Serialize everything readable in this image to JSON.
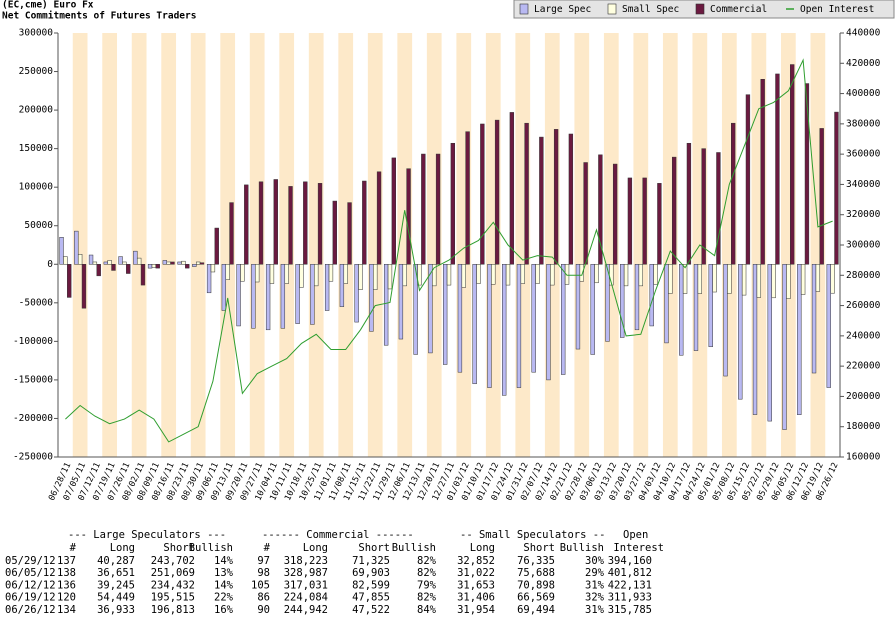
{
  "chart_data": {
    "type": "bar",
    "title": "(EC,cme) Euro Fx",
    "subtitle": "Net Commitments of Futures Traders",
    "categories": [
      "06/28/11",
      "07/05/11",
      "07/12/11",
      "07/19/11",
      "07/26/11",
      "08/02/11",
      "08/09/11",
      "08/16/11",
      "08/23/11",
      "08/30/11",
      "09/06/11",
      "09/13/11",
      "09/20/11",
      "09/27/11",
      "10/04/11",
      "10/11/11",
      "10/18/11",
      "10/25/11",
      "11/01/11",
      "11/08/11",
      "11/15/11",
      "11/22/11",
      "11/29/11",
      "12/06/11",
      "12/13/11",
      "12/20/11",
      "12/27/11",
      "01/03/12",
      "01/10/12",
      "01/17/12",
      "01/24/12",
      "01/31/12",
      "02/07/12",
      "02/14/12",
      "02/21/12",
      "02/28/12",
      "03/06/12",
      "03/13/12",
      "03/20/12",
      "03/27/12",
      "04/03/12",
      "04/10/12",
      "04/17/12",
      "04/24/12",
      "05/01/12",
      "05/08/12",
      "05/15/12",
      "05/22/12",
      "05/29/12",
      "06/05/12",
      "06/12/12",
      "06/19/12",
      "06/26/12"
    ],
    "series": [
      {
        "name": "Large Spec",
        "color": "#b9b9f2",
        "values": [
          35000,
          43000,
          12000,
          3000,
          10000,
          17000,
          -5000,
          5000,
          3000,
          -3000,
          -37000,
          -60000,
          -80000,
          -83000,
          -85000,
          -83000,
          -77000,
          -78000,
          -60000,
          -55000,
          -75000,
          -87000,
          -105000,
          -97000,
          -117000,
          -115000,
          -130000,
          -140000,
          -155000,
          -160000,
          -170000,
          -160000,
          -140000,
          -150000,
          -143000,
          -110000,
          -117000,
          -100000,
          -95000,
          -85000,
          -80000,
          -102000,
          -118000,
          -112000,
          -107000,
          -145000,
          -175000,
          -195000,
          -203415,
          -214418,
          -195187,
          -141066,
          -159880
        ]
      },
      {
        "name": "Small Spec",
        "color": "#ffffe0",
        "values": [
          10000,
          13000,
          3000,
          5000,
          3000,
          8000,
          -4000,
          3000,
          4000,
          3000,
          -10000,
          -20000,
          -22000,
          -23000,
          -25000,
          -25000,
          -30000,
          -28000,
          -22000,
          -25000,
          -33000,
          -33000,
          -32000,
          -28000,
          -27000,
          -28000,
          -27000,
          -30000,
          -25000,
          -26000,
          -27000,
          -25000,
          -25000,
          -27000,
          -26000,
          -22000,
          -24000,
          -27000,
          -28000,
          -28000,
          -26000,
          -38000,
          -38000,
          -38000,
          -36000,
          -38000,
          -40000,
          -43000,
          -43483,
          -44666,
          -39245,
          -35163,
          -37540
        ]
      },
      {
        "name": "Commercial",
        "color": "#6b1a40",
        "values": [
          -43000,
          -57000,
          -15000,
          -8000,
          -12000,
          -27000,
          -5000,
          3000,
          -5000,
          2000,
          47000,
          80000,
          103000,
          107000,
          110000,
          101000,
          107000,
          105000,
          82000,
          80000,
          108000,
          120000,
          138000,
          124000,
          143000,
          143000,
          157000,
          172000,
          182000,
          187000,
          197000,
          183000,
          165000,
          175000,
          169000,
          132000,
          142000,
          130000,
          112000,
          112000,
          105000,
          139000,
          157000,
          150000,
          145000,
          183000,
          220000,
          240000,
          246898,
          259084,
          234432,
          176229,
          197420
        ]
      },
      {
        "name": "Open Interest",
        "color": "#2f9e2f",
        "type": "line",
        "axis": "y2",
        "values": [
          185000,
          194000,
          187000,
          182000,
          185000,
          191000,
          185000,
          170000,
          175000,
          180000,
          210000,
          265000,
          202000,
          215000,
          220000,
          225000,
          235000,
          241000,
          231000,
          231000,
          244000,
          260000,
          262000,
          323000,
          270000,
          285000,
          290000,
          298000,
          303000,
          315000,
          300000,
          290000,
          293000,
          292000,
          280000,
          280000,
          310000,
          275000,
          240000,
          241000,
          270000,
          296000,
          285000,
          300000,
          293000,
          340000,
          365000,
          390000,
          394160,
          401812,
          422131,
          311933,
          315785
        ]
      }
    ],
    "ylim": [
      -250000,
      300000
    ],
    "yticks": [
      -250000,
      -200000,
      -150000,
      -100000,
      -50000,
      0,
      50000,
      100000,
      150000,
      200000,
      250000,
      300000
    ],
    "y2lim": [
      160000,
      440000
    ],
    "y2ticks": [
      160000,
      180000,
      200000,
      220000,
      240000,
      260000,
      280000,
      300000,
      320000,
      340000,
      360000,
      380000,
      400000,
      420000,
      440000
    ],
    "grid": false,
    "legend": "top-right"
  },
  "table": {
    "group_headers": [
      "--- Large Speculators ---",
      "------ Commercial ------",
      "-- Small Speculators --",
      "Open"
    ],
    "columns": [
      "#",
      "Long",
      "Short",
      "Bullish",
      "#",
      "Long",
      "Short",
      "Bullish",
      "Long",
      "Short",
      "Bullish",
      "Interest"
    ],
    "rows": [
      [
        "05/29/12",
        "137",
        "40,287",
        "243,702",
        "14%",
        "97",
        "318,223",
        "71,325",
        "82%",
        "32,852",
        "76,335",
        "30%",
        "394,160"
      ],
      [
        "06/05/12",
        "138",
        "36,651",
        "251,069",
        "13%",
        "98",
        "328,987",
        "69,903",
        "82%",
        "31,022",
        "75,688",
        "29%",
        "401,812"
      ],
      [
        "06/12/12",
        "136",
        "39,245",
        "234,432",
        "14%",
        "105",
        "317,031",
        "82,599",
        "79%",
        "31,653",
        "70,898",
        "31%",
        "422,131"
      ],
      [
        "06/19/12",
        "120",
        "54,449",
        "195,515",
        "22%",
        "86",
        "224,084",
        "47,855",
        "82%",
        "31,406",
        "66,569",
        "32%",
        "311,933"
      ],
      [
        "06/26/12",
        "134",
        "36,933",
        "196,813",
        "16%",
        "90",
        "244,942",
        "47,522",
        "84%",
        "31,954",
        "69,494",
        "31%",
        "315,785"
      ]
    ]
  }
}
